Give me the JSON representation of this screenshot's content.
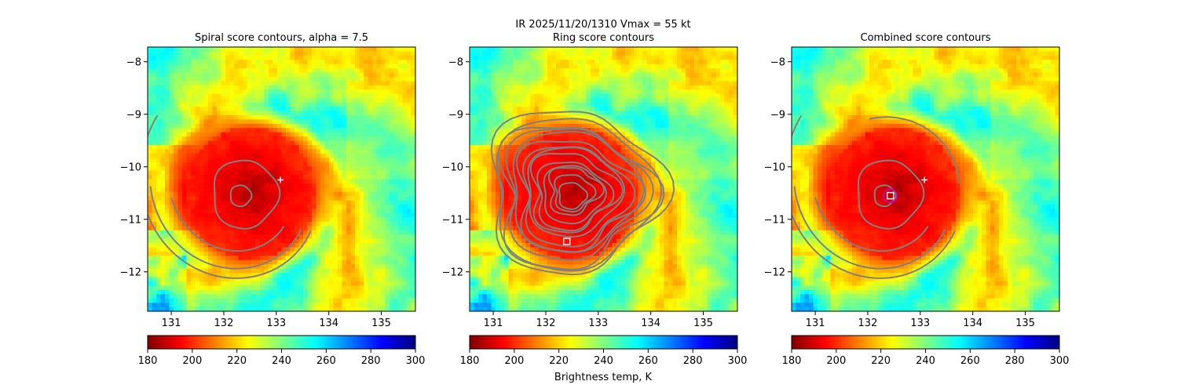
{
  "suptitle": "IR  2025/11/20/1310    Vmax = 55 kt",
  "colorbar": {
    "label": "Brightness temp, K",
    "ticks": [
      180,
      200,
      220,
      240,
      260,
      280,
      300
    ],
    "range": [
      180,
      300
    ],
    "colormap": "jet_r"
  },
  "colors": {
    "contour": "#808080",
    "center_marker": "#ffffff",
    "best_circle": "#cc00aa"
  },
  "chart_data": [
    {
      "type": "heatmap",
      "title": "Spiral score contours, alpha =  7.5",
      "xlim": [
        130.55,
        135.65
      ],
      "ylim": [
        -12.75,
        -7.72
      ],
      "xticks": [
        131,
        132,
        133,
        134,
        135
      ],
      "yticks": [
        -8,
        -9,
        -10,
        -11,
        -12
      ],
      "storm_center": [
        132.5,
        -10.5
      ],
      "markers": [
        {
          "shape": "plus",
          "x": 133.08,
          "y": -10.25
        }
      ]
    },
    {
      "type": "heatmap",
      "title": "Ring score contours",
      "xlim": [
        130.55,
        135.65
      ],
      "ylim": [
        -12.75,
        -7.72
      ],
      "xticks": [
        131,
        132,
        133,
        134,
        135
      ],
      "yticks": [
        -8,
        -9,
        -10,
        -11,
        -12
      ],
      "storm_center": [
        132.5,
        -10.5
      ],
      "markers": [
        {
          "shape": "square",
          "x": 132.4,
          "y": -11.42
        }
      ]
    },
    {
      "type": "heatmap",
      "title": "Combined score contours",
      "xlim": [
        130.55,
        135.65
      ],
      "ylim": [
        -12.75,
        -7.72
      ],
      "xticks": [
        131,
        132,
        133,
        134,
        135
      ],
      "yticks": [
        -8,
        -9,
        -10,
        -11,
        -12
      ],
      "storm_center": [
        132.5,
        -10.5
      ],
      "markers": [
        {
          "shape": "plus",
          "x": 133.08,
          "y": -10.25
        },
        {
          "shape": "square",
          "x": 132.43,
          "y": -10.55
        },
        {
          "shape": "circle",
          "x": 132.43,
          "y": -10.55
        }
      ]
    }
  ]
}
